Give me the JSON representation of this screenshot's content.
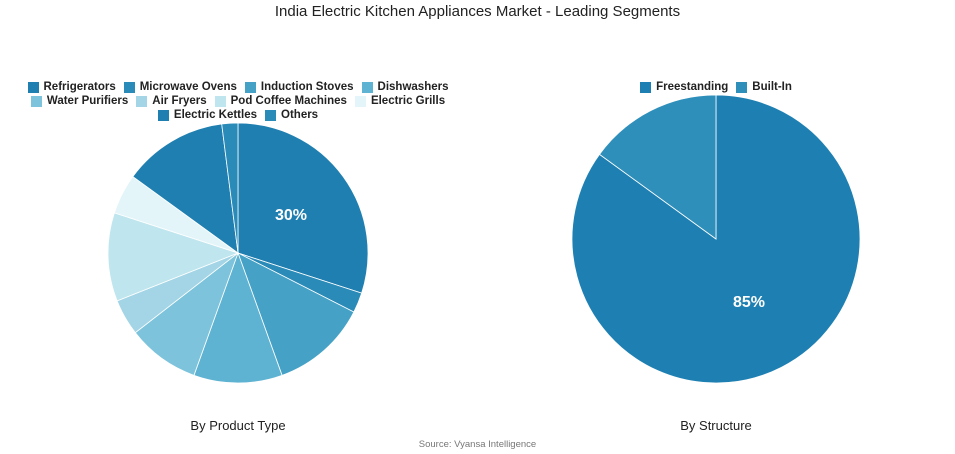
{
  "title": "India Electric Kitchen Appliances Market - Leading Segments",
  "source": "Source: Vyansa Intelligence",
  "chart_data": [
    {
      "type": "pie",
      "subtitle": "By Product Type",
      "legend_placement": "top",
      "labels": [
        "Refrigerators",
        "Microwave Ovens",
        "Induction Stoves",
        "Dishwashers",
        "Water Purifiers",
        "Air Fryers",
        "Pod Coffee Machines",
        "Electric Grills",
        "Electric Kettles",
        "Others"
      ],
      "values": [
        30,
        2.5,
        12,
        11,
        9,
        4.5,
        11,
        5,
        13,
        2
      ],
      "colors": [
        "#1f7fb0",
        "#2a8ab8",
        "#45a2c6",
        "#5eb2d2",
        "#7cc3db",
        "#a3d5e6",
        "#bfe5ee",
        "#e4f5f9",
        "#1f7fb0",
        "#2a8ab8"
      ],
      "data_labels": {
        "Refrigerators": "30%"
      }
    },
    {
      "type": "pie",
      "subtitle": "By Structure",
      "legend_placement": "top",
      "labels": [
        "Freestanding",
        "Built-In"
      ],
      "values": [
        85,
        15
      ],
      "colors": [
        "#1e80b2",
        "#2f8fbb"
      ],
      "data_labels": {
        "Freestanding": "85%"
      }
    }
  ]
}
